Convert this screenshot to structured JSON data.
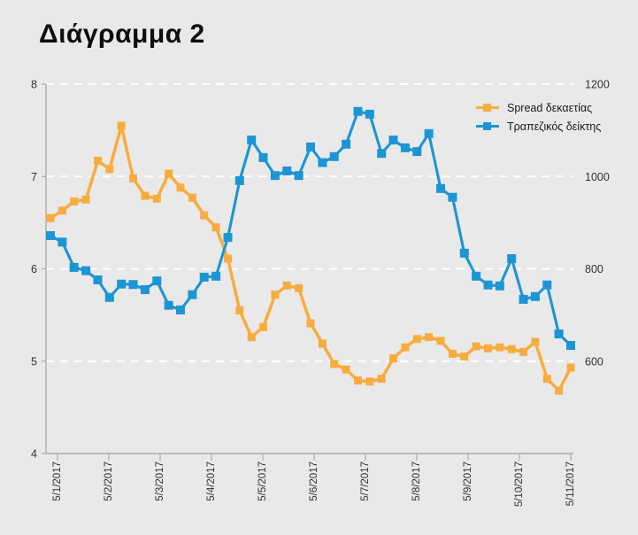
{
  "page": {
    "background": "#E9E9E9"
  },
  "chart": {
    "title": "Διάγραμμα 2",
    "legend": [
      {
        "id": "spread",
        "label": "Spread δεκαετίας",
        "color": "#F8AC3E"
      },
      {
        "id": "bank-index",
        "label": "Τραπεζικός δείκτης",
        "color": "#1C95D4"
      }
    ]
  },
  "chart_data": {
    "type": "line",
    "title": "Διάγραμμα 2",
    "x_labels": [
      "5/1/2017",
      "5/2/2017",
      "5/3/2017",
      "5/4/2017",
      "5/5/2017",
      "5/6/2017",
      "5/7/2017",
      "5/8/2017",
      "5/9/2017",
      "5/10/2017",
      "5/11/2017"
    ],
    "left_axis": {
      "range": [
        4,
        8
      ],
      "ticks": [
        8,
        7,
        6,
        5,
        4
      ],
      "applies_to": "Spread δεκαετίας"
    },
    "right_axis": {
      "range": [
        400,
        1200
      ],
      "ticks": [
        1200,
        1000,
        800,
        600
      ],
      "applies_to": "Τραπεζικός δείκτης"
    },
    "grid": {
      "horizontal": true,
      "style": "dashed-white",
      "values": [
        5,
        6,
        7,
        8
      ]
    },
    "legend_position": "top-right",
    "series": [
      {
        "id": "spread",
        "name": "Spread δεκαετίας",
        "axis": "left",
        "color": "#F8AC3E",
        "marker": "square",
        "values": [
          6.55,
          6.63,
          6.73,
          6.75,
          7.17,
          7.08,
          7.55,
          6.98,
          6.79,
          6.76,
          7.03,
          6.88,
          6.77,
          6.58,
          6.45,
          6.11,
          5.55,
          5.26,
          5.37,
          5.72,
          5.82,
          5.79,
          5.41,
          5.19,
          4.97,
          4.91,
          4.79,
          4.78,
          4.81,
          5.03,
          5.15,
          5.24,
          5.26,
          5.22,
          5.08,
          5.05,
          5.16,
          5.14,
          5.15,
          5.13,
          5.1,
          5.21,
          4.81,
          4.68,
          4.93
        ]
      },
      {
        "id": "bank-index",
        "name": "Τραπεζικός δείκτης",
        "axis": "right",
        "color": "#1C95D4",
        "marker": "square",
        "values": [
          872,
          858,
          803,
          796,
          776,
          738,
          767,
          766,
          755,
          774,
          721,
          711,
          744,
          782,
          784,
          868,
          991,
          1079,
          1041,
          1002,
          1012,
          1002,
          1064,
          1030,
          1043,
          1070,
          1141,
          1135,
          1050,
          1079,
          1062,
          1054,
          1093,
          974,
          955,
          834,
          784,
          765,
          763,
          822,
          734,
          740,
          765,
          659,
          634
        ]
      }
    ]
  }
}
